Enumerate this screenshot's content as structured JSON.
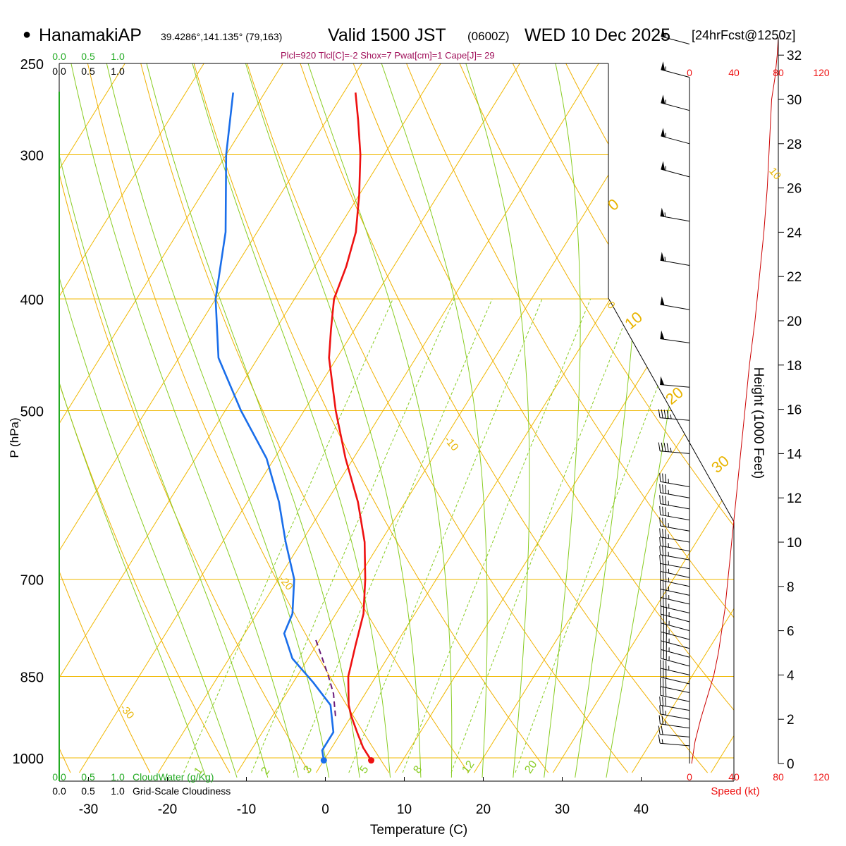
{
  "header": {
    "station": "HanamakiAP",
    "coords": "39.4286°,141.135° (79,163)",
    "valid": "Valid 1500 JST",
    "utc": "(0600Z)",
    "date": "WED 10 Dec 2025",
    "forecast": "[24hrFcst@1250z]",
    "indices": "Plcl=920 Tlcl[C]=-2 Shox=7 Pwat[cm]=1 Cape[J]= 29"
  },
  "scales": {
    "cloud_top_green": [
      "0.0",
      "0.5",
      "1.0"
    ],
    "cloud_top_black": [
      "0.0",
      "0.5",
      "1.0"
    ],
    "cloud_bottom_green": [
      "0.0",
      "0.5",
      "1.0"
    ],
    "cloud_bottom_black": [
      "0.0",
      "0.5",
      "1.0"
    ],
    "cloud_water_label": "CloudWater (g/Kg)",
    "cloudiness_label": "Grid-Scale Cloudiness",
    "speed_ticks": [
      "0",
      "40",
      "80",
      "120"
    ],
    "speed_label": "Speed (kt)"
  },
  "chart_data": {
    "type": "skew-t",
    "title": "HanamakiAP Valid 1500 JST (0600Z) WED 10 Dec 2025",
    "xlabel": "Temperature (C)",
    "ylabel": "P (hPa)",
    "y2label": "Height (1000 Feet)",
    "x_ticks": [
      -30,
      -20,
      -10,
      0,
      10,
      20,
      30,
      40
    ],
    "x_tick_labels": [
      "-30",
      "-20",
      "-10",
      "0",
      "10",
      "20",
      "30",
      "40"
    ],
    "p_ticks": [
      250,
      300,
      400,
      500,
      700,
      850,
      1000
    ],
    "p_tick_labels": [
      "250",
      "300",
      "400",
      "500",
      "700",
      "850",
      "1000"
    ],
    "height_ticks": [
      0,
      2,
      4,
      6,
      8,
      10,
      12,
      14,
      16,
      18,
      20,
      22,
      24,
      26,
      28,
      30,
      32
    ],
    "height_tick_labels": [
      "0",
      "2",
      "4",
      "6",
      "8",
      "10",
      "12",
      "14",
      "16",
      "18",
      "20",
      "22",
      "24",
      "26",
      "28",
      "30",
      "32"
    ],
    "xlim": [
      -34,
      36
    ],
    "plim": [
      1020,
      250
    ],
    "skew_c_per_log": 39.4,
    "isotherms_c": [
      -100,
      -90,
      -80,
      -70,
      -60,
      -50,
      -40,
      -30,
      -20,
      -10,
      0,
      10,
      20,
      30,
      40,
      50
    ],
    "dry_adiabats_theta_k": [
      230,
      240,
      250,
      260,
      270,
      280,
      290,
      300,
      310,
      320,
      330,
      340,
      350,
      360,
      370,
      380,
      390,
      400,
      410,
      420
    ],
    "moist_adiabats_c": [
      -16,
      -12,
      -8,
      -4,
      0,
      4,
      8,
      12,
      16,
      20,
      24,
      28,
      32,
      36
    ],
    "mixing_ratios_gkg": [
      1,
      2,
      3,
      5,
      8,
      12,
      20
    ],
    "mixing_ratio_labels": [
      "1",
      "2",
      "3",
      "5",
      "8",
      "12",
      "20"
    ],
    "isotherm_labels": [
      {
        "text": "10",
        "t": 10,
        "p": 310
      },
      {
        "text": "0",
        "t": 0,
        "p": 405
      },
      {
        "text": "-10",
        "t": -10,
        "p": 530
      },
      {
        "text": "-20",
        "t": -20,
        "p": 700
      },
      {
        "text": "-30",
        "t": -30,
        "p": 905
      }
    ],
    "theta_labels": [
      {
        "text": "0",
        "t": 31,
        "p": 350
      },
      {
        "text": "10",
        "t": 31,
        "p": 445
      },
      {
        "text": "20",
        "t": 31,
        "p": 490
      },
      {
        "text": "30",
        "t": 31,
        "p": 575
      }
    ],
    "temperature": [
      {
        "p": 1005,
        "t": 6.0
      },
      {
        "p": 980,
        "t": 4.0
      },
      {
        "p": 950,
        "t": 2.0
      },
      {
        "p": 920,
        "t": 0.0
      },
      {
        "p": 900,
        "t": -1.2
      },
      {
        "p": 850,
        "t": -3.5
      },
      {
        "p": 800,
        "t": -5.0
      },
      {
        "p": 750,
        "t": -6.5
      },
      {
        "p": 700,
        "t": -9.0
      },
      {
        "p": 650,
        "t": -12.0
      },
      {
        "p": 600,
        "t": -16.0
      },
      {
        "p": 550,
        "t": -21.0
      },
      {
        "p": 500,
        "t": -26.0
      },
      {
        "p": 450,
        "t": -31.0
      },
      {
        "p": 425,
        "t": -33.0
      },
      {
        "p": 400,
        "t": -35.0
      },
      {
        "p": 375,
        "t": -36.0
      },
      {
        "p": 350,
        "t": -37.5
      },
      {
        "p": 325,
        "t": -40.0
      },
      {
        "p": 300,
        "t": -43.0
      },
      {
        "p": 280,
        "t": -46.0
      },
      {
        "p": 265,
        "t": -48.5
      }
    ],
    "dewpoint": [
      {
        "p": 1005,
        "t": 0.0
      },
      {
        "p": 985,
        "t": -1.0
      },
      {
        "p": 950,
        "t": -1.0
      },
      {
        "p": 900,
        "t": -3.5
      },
      {
        "p": 860,
        "t": -7.5
      },
      {
        "p": 820,
        "t": -12.0
      },
      {
        "p": 780,
        "t": -15.0
      },
      {
        "p": 750,
        "t": -15.5
      },
      {
        "p": 700,
        "t": -18.0
      },
      {
        "p": 650,
        "t": -22.0
      },
      {
        "p": 600,
        "t": -26.0
      },
      {
        "p": 550,
        "t": -31.0
      },
      {
        "p": 500,
        "t": -38.0
      },
      {
        "p": 450,
        "t": -45.0
      },
      {
        "p": 400,
        "t": -50.0
      },
      {
        "p": 350,
        "t": -54.0
      },
      {
        "p": 300,
        "t": -60.0
      },
      {
        "p": 265,
        "t": -64.0
      }
    ],
    "parcel": [
      {
        "p": 920,
        "t": -2.0
      },
      {
        "p": 900,
        "t": -3.0
      },
      {
        "p": 880,
        "t": -4.0
      },
      {
        "p": 850,
        "t": -6.0
      },
      {
        "p": 820,
        "t": -8.2
      },
      {
        "p": 790,
        "t": -10.5
      }
    ],
    "surface": {
      "p": 1005,
      "t": 6.0,
      "td": 0.0
    },
    "speed_scale": [
      0,
      40,
      80,
      120
    ],
    "wind_barbs": [
      {
        "h": 0.8,
        "dir": 275,
        "spd": 18
      },
      {
        "h": 1.2,
        "dir": 275,
        "spd": 22
      },
      {
        "h": 1.6,
        "dir": 278,
        "spd": 25
      },
      {
        "h": 2.0,
        "dir": 280,
        "spd": 28
      },
      {
        "h": 2.4,
        "dir": 280,
        "spd": 30
      },
      {
        "h": 2.8,
        "dir": 282,
        "spd": 30
      },
      {
        "h": 3.2,
        "dir": 282,
        "spd": 32
      },
      {
        "h": 3.6,
        "dir": 283,
        "spd": 33
      },
      {
        "h": 4.0,
        "dir": 283,
        "spd": 35
      },
      {
        "h": 4.4,
        "dir": 285,
        "spd": 35
      },
      {
        "h": 4.8,
        "dir": 285,
        "spd": 35
      },
      {
        "h": 5.2,
        "dir": 285,
        "spd": 35
      },
      {
        "h": 5.6,
        "dir": 285,
        "spd": 35
      },
      {
        "h": 6.0,
        "dir": 285,
        "spd": 35
      },
      {
        "h": 6.4,
        "dir": 285,
        "spd": 35
      },
      {
        "h": 6.8,
        "dir": 283,
        "spd": 35
      },
      {
        "h": 7.2,
        "dir": 283,
        "spd": 35
      },
      {
        "h": 7.6,
        "dir": 282,
        "spd": 35
      },
      {
        "h": 8.0,
        "dir": 282,
        "spd": 35
      },
      {
        "h": 8.4,
        "dir": 282,
        "spd": 35
      },
      {
        "h": 8.8,
        "dir": 280,
        "spd": 35
      },
      {
        "h": 9.2,
        "dir": 280,
        "spd": 35
      },
      {
        "h": 9.6,
        "dir": 280,
        "spd": 35
      },
      {
        "h": 10.0,
        "dir": 280,
        "spd": 35
      },
      {
        "h": 10.5,
        "dir": 280,
        "spd": 35
      },
      {
        "h": 11.0,
        "dir": 280,
        "spd": 35
      },
      {
        "h": 11.5,
        "dir": 280,
        "spd": 35
      },
      {
        "h": 12.0,
        "dir": 280,
        "spd": 35
      },
      {
        "h": 12.5,
        "dir": 280,
        "spd": 35
      },
      {
        "h": 14.0,
        "dir": 275,
        "spd": 45
      },
      {
        "h": 15.5,
        "dir": 275,
        "spd": 45
      },
      {
        "h": 17.0,
        "dir": 275,
        "spd": 50
      },
      {
        "h": 19.0,
        "dir": 278,
        "spd": 50
      },
      {
        "h": 20.5,
        "dir": 280,
        "spd": 50
      },
      {
        "h": 22.5,
        "dir": 280,
        "spd": 55
      },
      {
        "h": 24.5,
        "dir": 280,
        "spd": 55
      },
      {
        "h": 26.5,
        "dir": 285,
        "spd": 55
      },
      {
        "h": 28.0,
        "dir": 285,
        "spd": 55
      },
      {
        "h": 29.5,
        "dir": 285,
        "spd": 55
      },
      {
        "h": 31.0,
        "dir": 285,
        "spd": 55
      },
      {
        "h": 32.5,
        "dir": 285,
        "spd": 55
      }
    ],
    "speed_profile": [
      {
        "h": 0.0,
        "s": 2
      },
      {
        "h": 1.0,
        "s": 5
      },
      {
        "h": 2.0,
        "s": 10
      },
      {
        "h": 3.0,
        "s": 16
      },
      {
        "h": 4.0,
        "s": 22
      },
      {
        "h": 5.0,
        "s": 26
      },
      {
        "h": 6.0,
        "s": 29
      },
      {
        "h": 7.0,
        "s": 32
      },
      {
        "h": 8.0,
        "s": 34
      },
      {
        "h": 9.0,
        "s": 36
      },
      {
        "h": 10.0,
        "s": 38
      },
      {
        "h": 11.0,
        "s": 40
      },
      {
        "h": 12.0,
        "s": 42
      },
      {
        "h": 14.0,
        "s": 46
      },
      {
        "h": 16.0,
        "s": 50
      },
      {
        "h": 18.0,
        "s": 54
      },
      {
        "h": 20.0,
        "s": 59
      },
      {
        "h": 22.0,
        "s": 63
      },
      {
        "h": 24.0,
        "s": 67
      },
      {
        "h": 26.0,
        "s": 70
      },
      {
        "h": 28.0,
        "s": 72
      },
      {
        "h": 30.0,
        "s": 74
      },
      {
        "h": 31.0,
        "s": 77
      },
      {
        "h": 32.0,
        "s": 79
      },
      {
        "h": 32.8,
        "s": 80
      }
    ]
  }
}
